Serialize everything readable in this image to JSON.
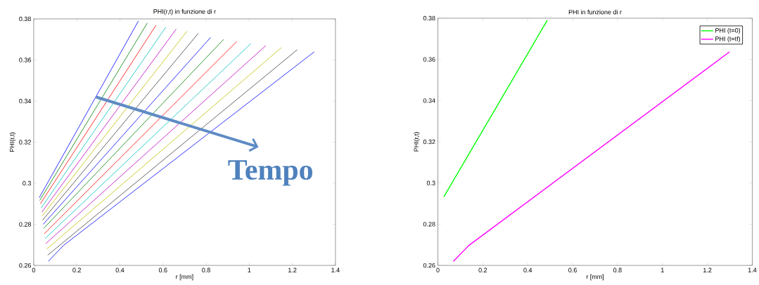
{
  "chart_data": [
    {
      "type": "line",
      "title": "PHI(r,t) in funzione di r",
      "xlabel": "r [mm]",
      "ylabel": "PHI(r,t)",
      "annotations": [
        "Tempo"
      ],
      "xlim": [
        0,
        1.4
      ],
      "ylim": [
        0.26,
        0.38
      ],
      "xticks": [
        0,
        0.2,
        0.4,
        0.6,
        0.8,
        1,
        1.2,
        1.4
      ],
      "yticks": [
        0.26,
        0.28,
        0.3,
        0.32,
        0.34,
        0.36,
        0.38
      ],
      "grid": false,
      "line_style": "solid",
      "series": [
        {
          "color": "#0000ff",
          "x": [
            0.026,
            0.486
          ],
          "values": [
            0.293,
            0.379
          ]
        },
        {
          "color": "#008000",
          "x": [
            0.028,
            0.527
          ],
          "values": [
            0.2916,
            0.378
          ]
        },
        {
          "color": "#ff0000",
          "x": [
            0.031,
            0.568
          ],
          "values": [
            0.29,
            0.377
          ]
        },
        {
          "color": "#00bfbf",
          "x": [
            0.035,
            0.613
          ],
          "values": [
            0.288,
            0.376
          ]
        },
        {
          "color": "#bf00bf",
          "x": [
            0.038,
            0.661
          ],
          "values": [
            0.286,
            0.375
          ]
        },
        {
          "color": "#bfbf00",
          "x": [
            0.039,
            0.711
          ],
          "values": [
            0.284,
            0.374
          ]
        },
        {
          "color": "#404040",
          "x": [
            0.041,
            0.764
          ],
          "values": [
            0.282,
            0.373
          ]
        },
        {
          "color": "#0000ff",
          "x": [
            0.044,
            0.821
          ],
          "values": [
            0.28,
            0.371
          ]
        },
        {
          "color": "#008000",
          "x": [
            0.046,
            0.881
          ],
          "values": [
            0.278,
            0.37
          ]
        },
        {
          "color": "#ff0000",
          "x": [
            0.049,
            0.942
          ],
          "values": [
            0.2754,
            0.369
          ]
        },
        {
          "color": "#00bfbf",
          "x": [
            0.052,
            1.008
          ],
          "values": [
            0.273,
            0.368
          ]
        },
        {
          "color": "#bf00bf",
          "x": [
            0.056,
            1.077
          ],
          "values": [
            0.2706,
            0.367
          ]
        },
        {
          "color": "#bfbf00",
          "x": [
            0.061,
            1.149
          ],
          "values": [
            0.268,
            0.366
          ]
        },
        {
          "color": "#404040",
          "x": [
            0.065,
            1.223
          ],
          "values": [
            0.265,
            0.365
          ]
        },
        {
          "color": "#0000ff",
          "x": [
            0.068,
            0.138,
            1.302
          ],
          "values": [
            0.262,
            0.2697,
            0.364
          ]
        }
      ]
    },
    {
      "type": "line",
      "title": "PHI in funzione di r",
      "xlabel": "r [mm]",
      "ylabel": "PHI(r,t)",
      "legend": "top right",
      "xlim": [
        0,
        1.4
      ],
      "ylim": [
        0.26,
        0.38
      ],
      "xticks": [
        0,
        0.2,
        0.4,
        0.6,
        0.8,
        1,
        1.2,
        1.4
      ],
      "yticks": [
        0.26,
        0.28,
        0.3,
        0.32,
        0.34,
        0.36,
        0.38
      ],
      "grid": false,
      "line_style": "solid",
      "series": [
        {
          "name": "PHI (t=0)",
          "color": "#00ff00",
          "x": [
            0.027,
            0.487
          ],
          "values": [
            0.2934,
            0.379
          ]
        },
        {
          "name": "PHI (t=tf)",
          "color": "#ff00ff",
          "x": [
            0.069,
            0.138,
            1.299
          ],
          "values": [
            0.262,
            0.2697,
            0.3637
          ]
        }
      ]
    }
  ]
}
